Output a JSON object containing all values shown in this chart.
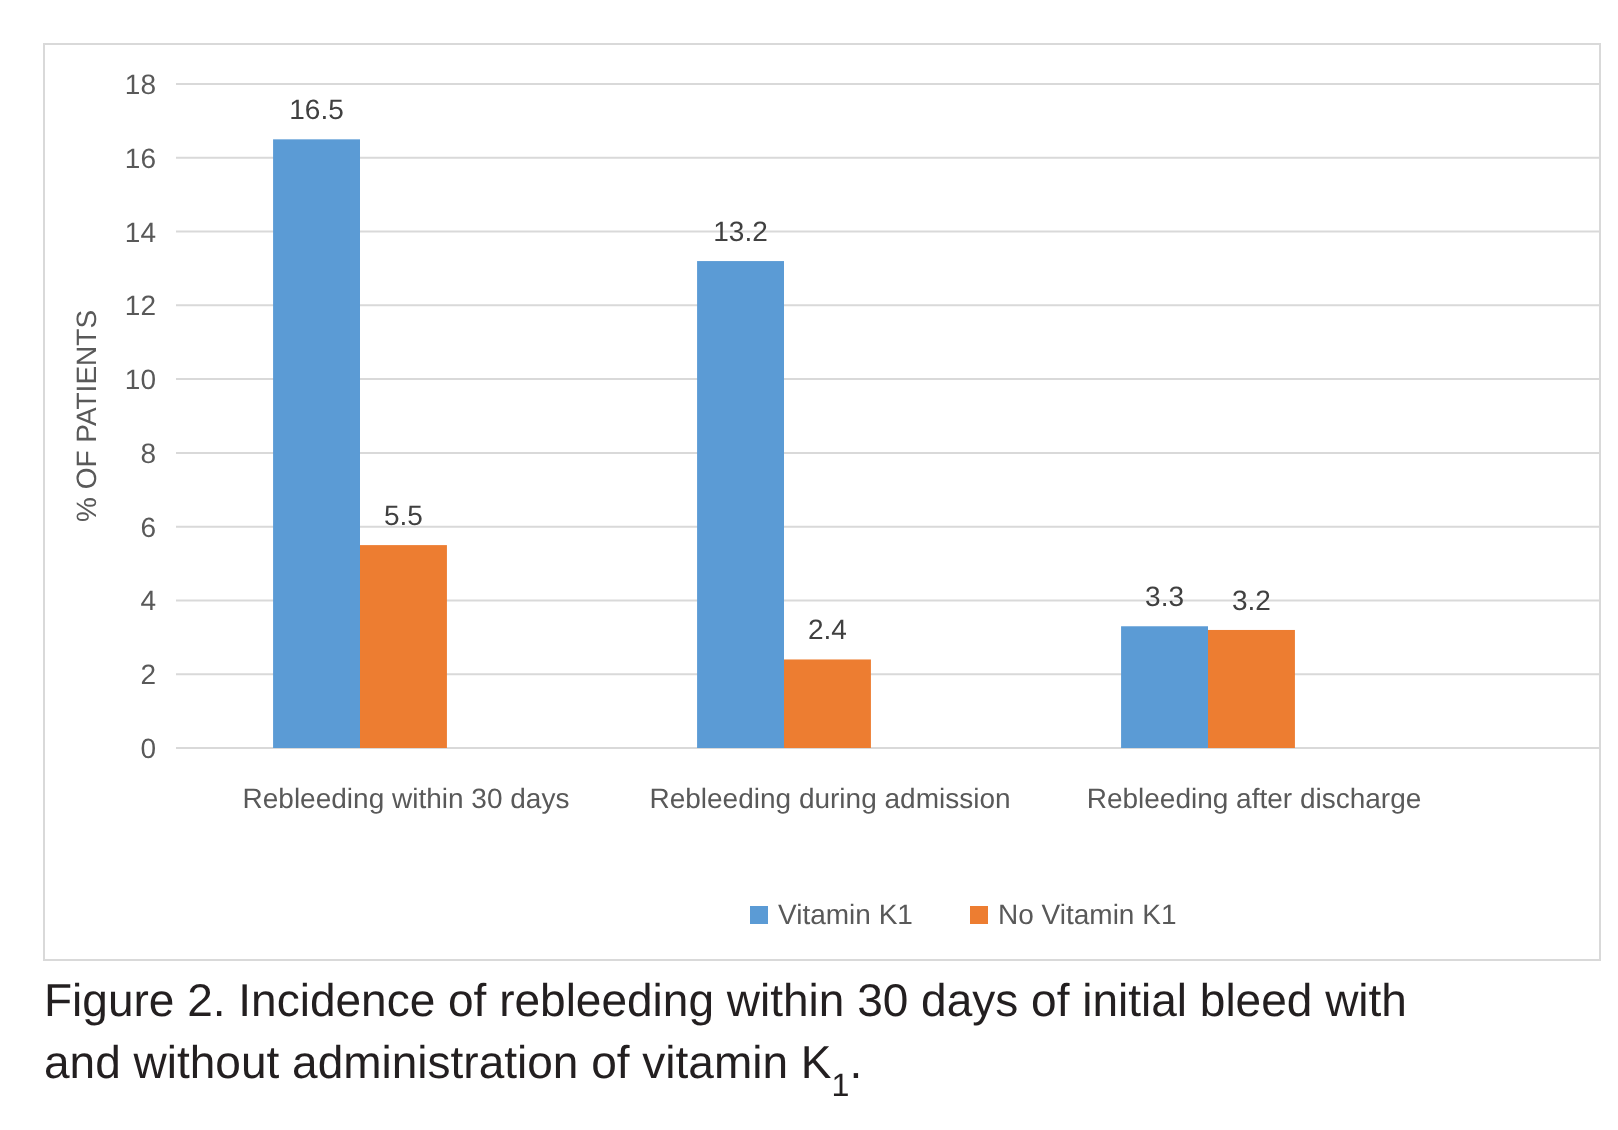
{
  "chart_data": {
    "type": "bar",
    "ylabel": "% OF PATIENTS",
    "categories": [
      "Rebleeding within 30 days",
      "Rebleeding during admission",
      "Rebleeding after discharge"
    ],
    "series": [
      {
        "name": "Vitamin K1",
        "color": "#5b9bd5",
        "values": [
          16.5,
          13.2,
          3.3
        ]
      },
      {
        "name": "No Vitamin K1",
        "color": "#ed7d31",
        "values": [
          5.5,
          2.4,
          3.2
        ]
      }
    ],
    "ylim": [
      0,
      18
    ],
    "yticks": [
      0,
      2,
      4,
      6,
      8,
      10,
      12,
      14,
      16,
      18
    ],
    "grid": "y",
    "legend": "bottom",
    "data_labels": true,
    "annotations": [
      "Figure 2. Incidence of rebleeding within 30 days of initial bleed with and without administration of vitamin K$_{1}$."
    ]
  }
}
